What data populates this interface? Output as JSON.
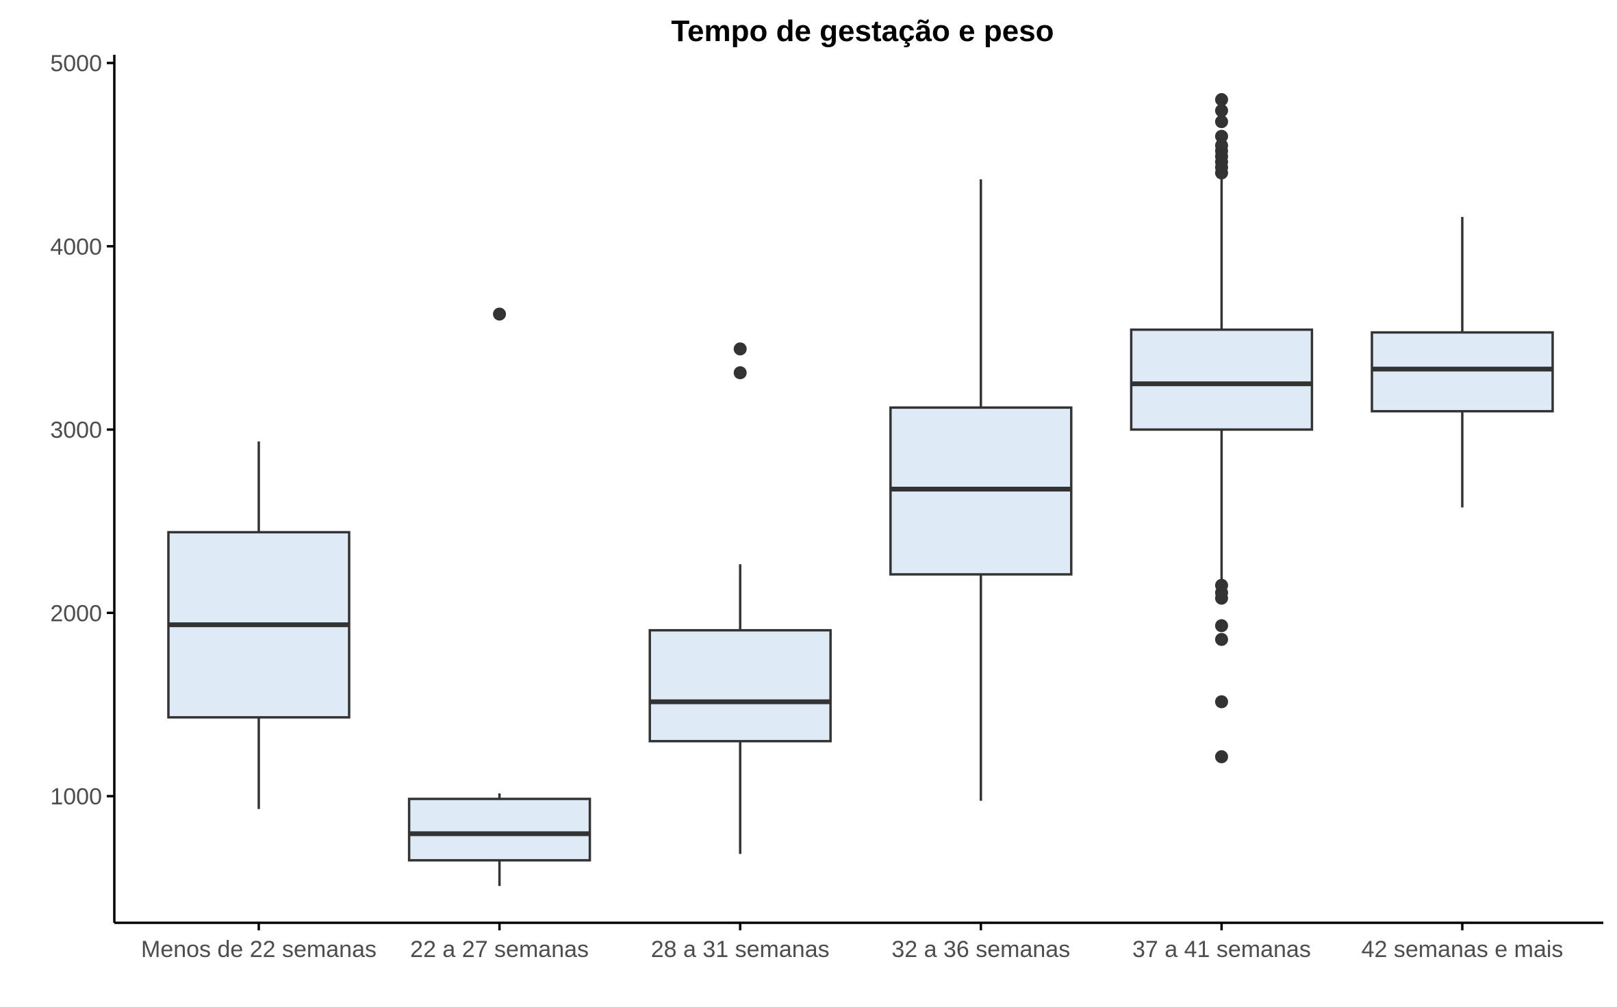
{
  "chart_data": {
    "type": "boxplot",
    "title": "Tempo de gestação e peso",
    "xlabel": "",
    "ylabel": "",
    "ylim": [
      365,
      5000
    ],
    "yticks": [
      1000,
      2000,
      3000,
      4000,
      5000
    ],
    "grid": false,
    "legend": "none",
    "box_fill": "#deeaf6",
    "line_color": "#333333",
    "categories": [
      "Menos de 22 semanas",
      "22 a 27 semanas",
      "28 a 31 semanas",
      "32 a 36 semanas",
      "37 a 41 semanas",
      "42 semanas e mais"
    ],
    "boxes": [
      {
        "min": 930,
        "q1": 1430,
        "median": 1935,
        "q3": 2440,
        "max": 2935,
        "outliers": []
      },
      {
        "min": 510,
        "q1": 650,
        "median": 795,
        "q3": 985,
        "max": 1015,
        "outliers": [
          3630
        ]
      },
      {
        "min": 685,
        "q1": 1300,
        "median": 1515,
        "q3": 1905,
        "max": 2265,
        "outliers": [
          3310,
          3440
        ]
      },
      {
        "min": 975,
        "q1": 2210,
        "median": 2675,
        "q3": 3120,
        "max": 4365,
        "outliers": []
      },
      {
        "min": 2170,
        "q1": 3000,
        "median": 3250,
        "q3": 3545,
        "max": 4380,
        "outliers": [
          1215,
          1515,
          1855,
          1930,
          2080,
          2110,
          2150,
          4400,
          4430,
          4460,
          4490,
          4520,
          4550,
          4600,
          4680,
          4740,
          4800
        ]
      },
      {
        "min": 2575,
        "q1": 3100,
        "median": 3330,
        "q3": 3530,
        "max": 4160,
        "outliers": []
      }
    ]
  }
}
